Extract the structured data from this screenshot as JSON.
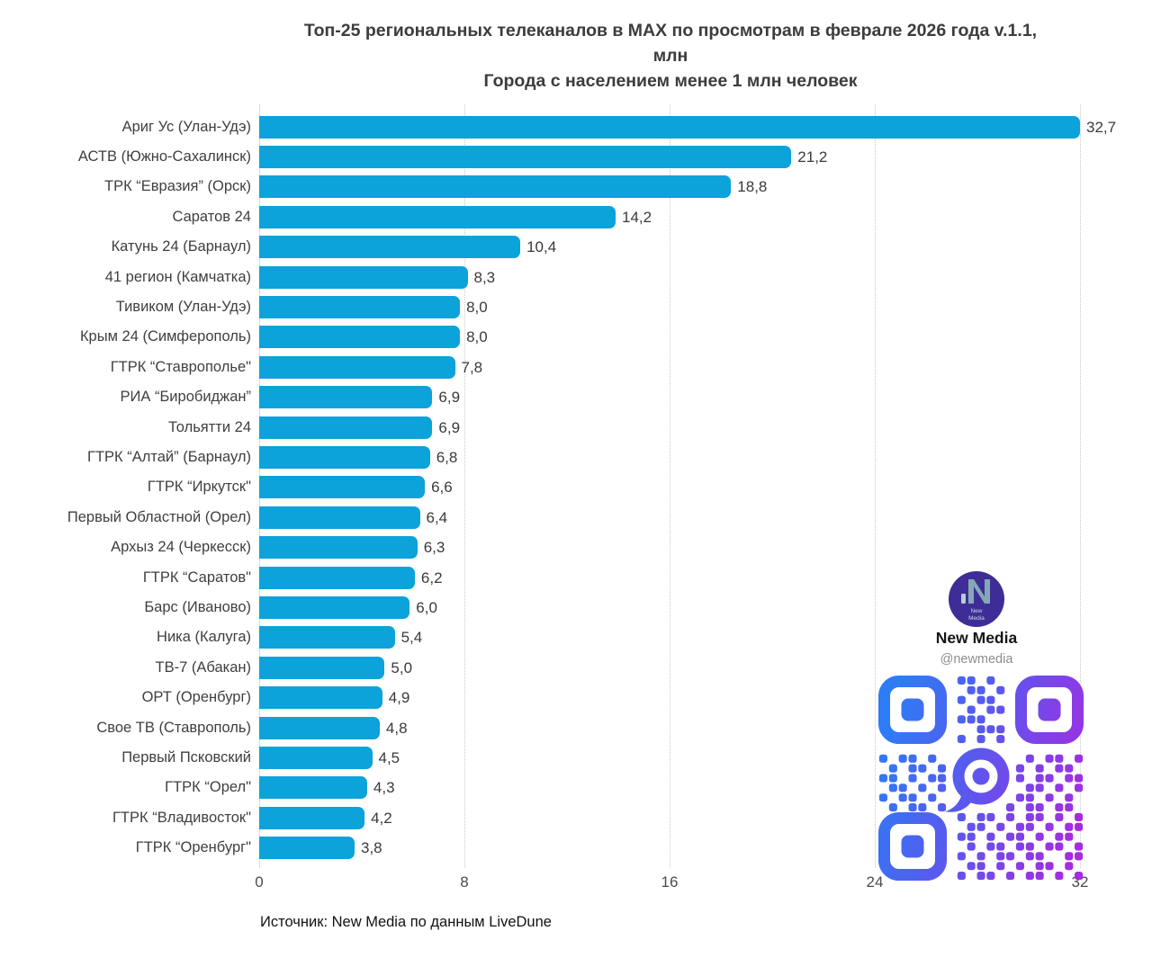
{
  "title": {
    "line1": "Топ-25 региональных телеканалов в MAX по просмотрам в феврале 2026 года v.1.1,",
    "line2": "млн",
    "line3": "Города с населением менее 1 млн человек"
  },
  "chart_data": {
    "type": "bar",
    "orientation": "horizontal",
    "categories": [
      "Ариг Ус (Улан-Удэ)",
      "АСТВ (Южно-Сахалинск)",
      "ТРК “Евразия” (Орск)",
      "Саратов 24",
      "Катунь 24 (Барнаул)",
      "41 регион (Камчатка)",
      "Тивиком (Улан-Удэ)",
      "Крым 24 (Симферополь)",
      "ГТРК “Ставрополье\"",
      "РИА “Биробиджан”",
      "Тольятти 24",
      "ГТРК “Алтай” (Барнаул)",
      "ГТРК “Иркутск\"",
      "Первый Областной (Орел)",
      "Архыз 24 (Черкесск)",
      "ГТРК “Саратов\"",
      "Барс (Иваново)",
      "Ника (Калуга)",
      "ТВ-7 (Абакан)",
      "ОРТ (Оренбург)",
      "Свое ТВ (Ставрополь)",
      "Первый Псковский",
      "ГТРК “Орел\"",
      "ГТРК “Владивосток\"",
      "ГТРК “Оренбург\""
    ],
    "values": [
      32.7,
      21.2,
      18.8,
      14.2,
      10.4,
      8.3,
      8.0,
      8.0,
      7.8,
      6.9,
      6.9,
      6.8,
      6.6,
      6.4,
      6.3,
      6.2,
      6.0,
      5.4,
      5.0,
      4.9,
      4.8,
      4.5,
      4.3,
      4.2,
      3.8
    ],
    "value_labels": [
      "32,7",
      "21,2",
      "18,8",
      "14,2",
      "10,4",
      "8,3",
      "8,0",
      "8,0",
      "7,8",
      "6,9",
      "6,9",
      "6,8",
      "6,6",
      "6,4",
      "6,3",
      "6,2",
      "6,0",
      "5,4",
      "5,0",
      "4,9",
      "4,8",
      "4,5",
      "4,3",
      "4,2",
      "3,8"
    ],
    "xlabel": "",
    "ylabel": "",
    "xlim": [
      0,
      32.7
    ],
    "xticks": [
      0,
      8,
      16,
      24,
      32
    ],
    "xtick_labels": [
      "0",
      "8",
      "16",
      "24",
      "32"
    ],
    "grid": "vertical-dotted",
    "legend": "none",
    "bar_color": "#0ca2da",
    "units": "млн"
  },
  "source": "Источник: New Media по данным LiveDune",
  "branding": {
    "name": "New Media",
    "handle": "@newmedia",
    "logo_text_lines": [
      "New",
      "Media"
    ],
    "logo_bg_color": "#3e2d97",
    "logo_glyph_color": "#85a9b4"
  },
  "qr": {
    "icon": "qr-code",
    "center_icon": "max-messenger-logo",
    "gradient": [
      "#2e7cf5",
      "#5a58ee",
      "#a62be2"
    ],
    "matrix": [
      "000000001101000000000",
      "000000000110100000000",
      "000000001011000000000",
      "000000000101100000000",
      "000000001110000000000",
      "000000000011100000000",
      "000000001010100000000",
      "000000000111000000000",
      "101101011010110101101",
      "010110100101011010110",
      "110101101101101011011",
      "011010110110010110101",
      "101101011011101101010",
      "010110101101010110110",
      "000000001011010110101",
      "000000000110101101011",
      "000000001101011010110",
      "000000000101101101101",
      "000000001010110110011",
      "000000000110101011010",
      "000000001011010110101"
    ]
  }
}
